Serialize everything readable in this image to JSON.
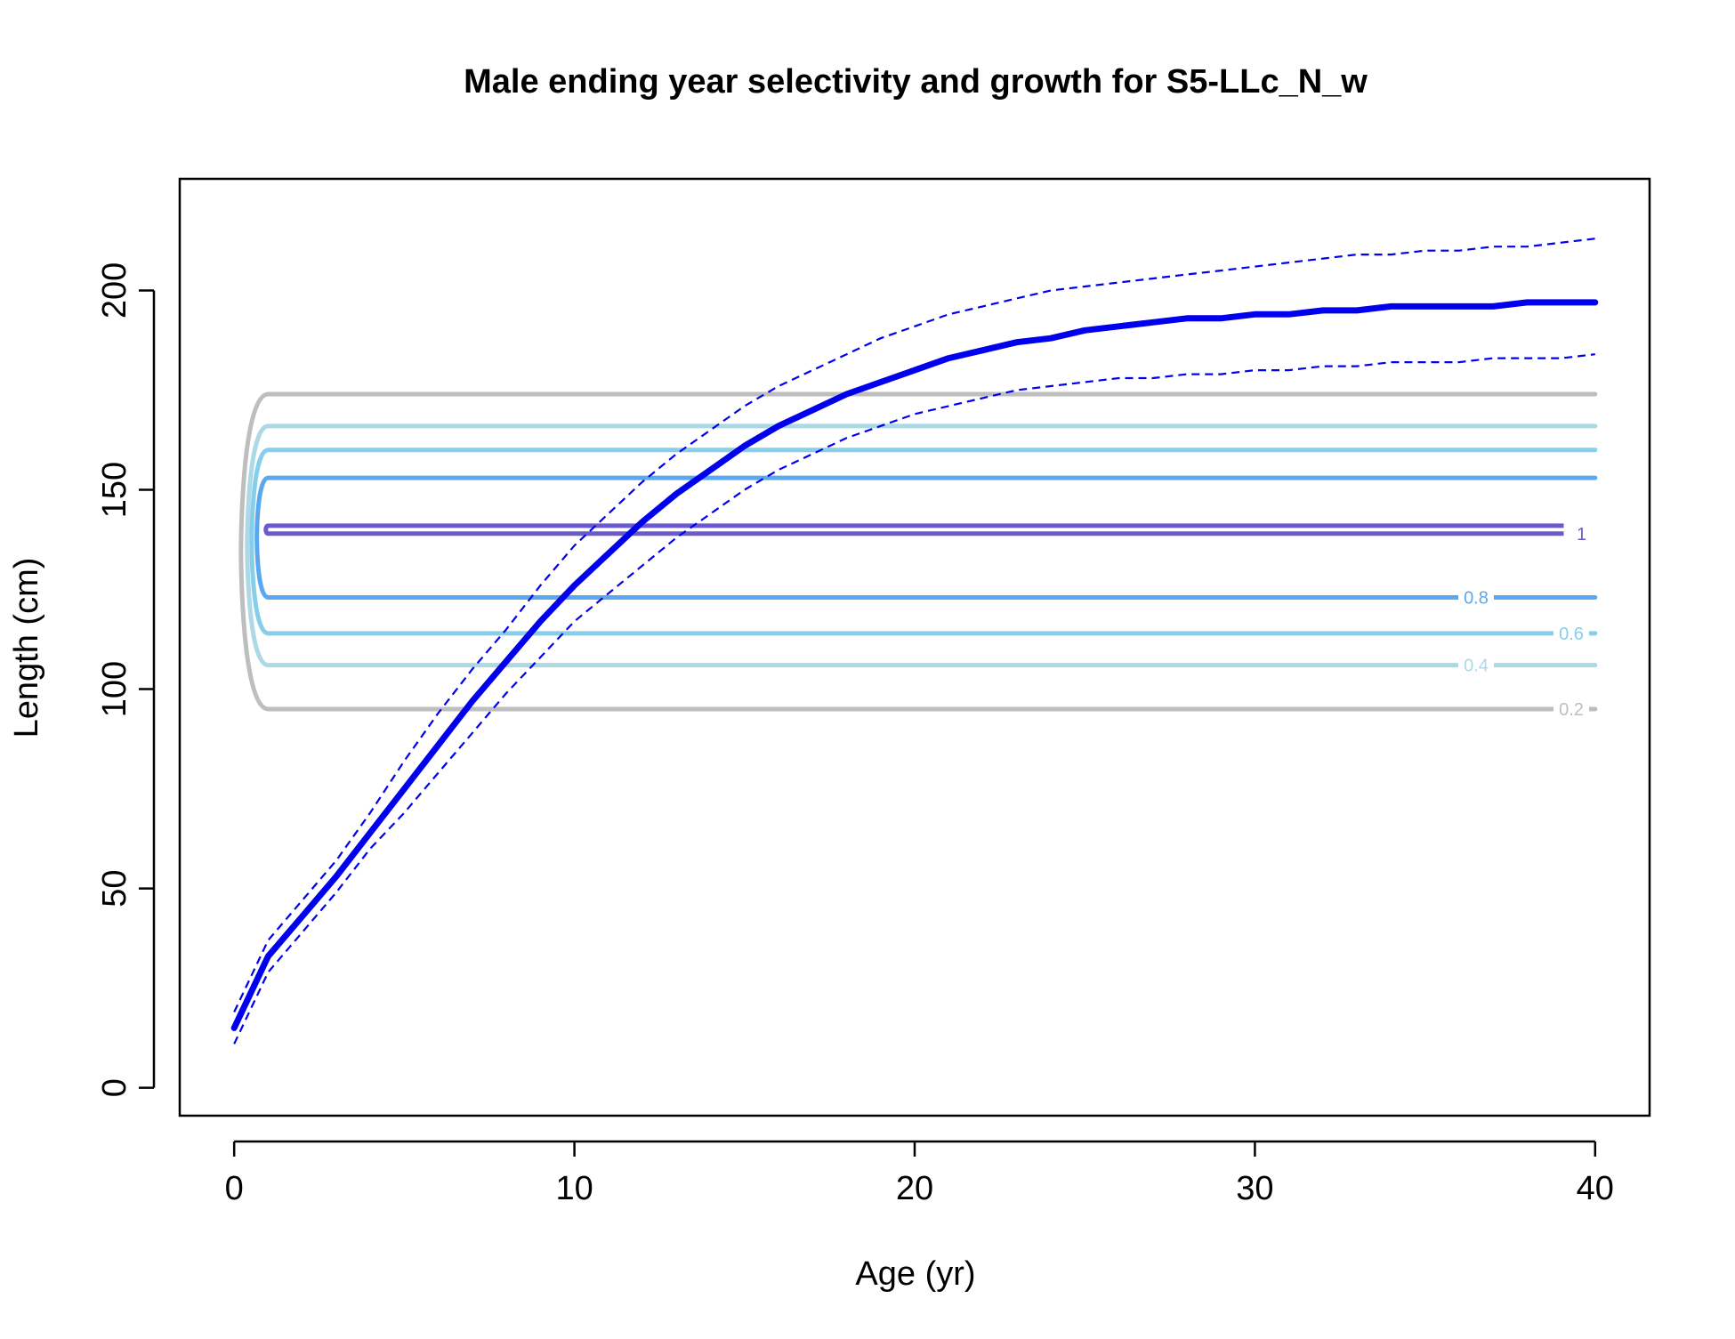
{
  "chart_data": {
    "type": "line",
    "title": "Male ending year selectivity and growth for S5-LLc_N_w",
    "xlabel": "Age (yr)",
    "ylabel": "Length (cm)",
    "xlim": [
      -1.6,
      41.6
    ],
    "ylim": [
      -7,
      228
    ],
    "x_ticks": [
      0,
      10,
      20,
      30,
      40
    ],
    "y_ticks": [
      0,
      50,
      100,
      150,
      200
    ],
    "x_tick_labels": [
      "0",
      "10",
      "20",
      "30",
      "40"
    ],
    "y_tick_labels": [
      "0",
      "50",
      "100",
      "150",
      "200"
    ],
    "grid": false,
    "legend": "none",
    "growth": {
      "color": "#0000ee",
      "ages": [
        0,
        1,
        2,
        3,
        4,
        5,
        6,
        7,
        8,
        9,
        10,
        11,
        12,
        13,
        14,
        15,
        16,
        17,
        18,
        19,
        20,
        21,
        22,
        23,
        24,
        25,
        26,
        27,
        28,
        29,
        30,
        31,
        32,
        33,
        34,
        35,
        36,
        37,
        38,
        39,
        40
      ],
      "mean": [
        15,
        33,
        43,
        53,
        64,
        75,
        86,
        97,
        107,
        117,
        126,
        134,
        142,
        149,
        155,
        161,
        166,
        170,
        174,
        177,
        180,
        183,
        185,
        187,
        188,
        190,
        191,
        192,
        193,
        193,
        194,
        194,
        195,
        195,
        196,
        196,
        196,
        196,
        197,
        197,
        197
      ],
      "upper": [
        19,
        37,
        47,
        57,
        69,
        82,
        94,
        105,
        115,
        126,
        136,
        144,
        152,
        159,
        165,
        171,
        176,
        180,
        184,
        188,
        191,
        194,
        196,
        198,
        200,
        201,
        202,
        203,
        204,
        205,
        206,
        207,
        208,
        209,
        209,
        210,
        210,
        211,
        211,
        212,
        213
      ],
      "lower": [
        11,
        29,
        39,
        49,
        60,
        69,
        79,
        89,
        99,
        108,
        117,
        124,
        131,
        138,
        144,
        150,
        155,
        159,
        163,
        166,
        169,
        171,
        173,
        175,
        176,
        177,
        178,
        178,
        179,
        179,
        180,
        180,
        181,
        181,
        182,
        182,
        182,
        183,
        183,
        183,
        184
      ]
    },
    "selectivity_contours": [
      {
        "level": "0.2",
        "color": "#bebebe",
        "lower": 95,
        "upper": 174,
        "label_x": 39.3,
        "label_y": 95
      },
      {
        "level": "0.4",
        "color": "#add8e6",
        "lower": 106,
        "upper": 166,
        "label_x": 36.5,
        "label_y": 106
      },
      {
        "level": "0.6",
        "color": "#87ceeb",
        "lower": 114,
        "upper": 160,
        "label_x": 39.3,
        "label_y": 114
      },
      {
        "level": "0.8",
        "color": "#5aa8f0",
        "lower": 123,
        "upper": 153,
        "label_x": 36.5,
        "label_y": 123
      },
      {
        "level": "1",
        "color": "#6a5acd",
        "lower": 139,
        "upper": 141,
        "label_x": 39.6,
        "label_y": 139
      }
    ]
  }
}
